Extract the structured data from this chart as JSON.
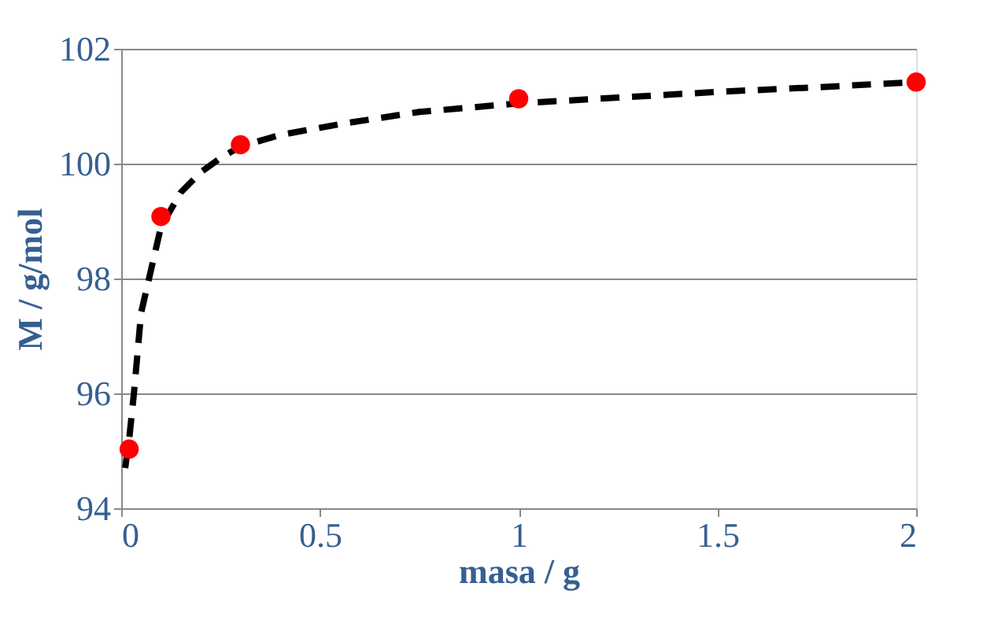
{
  "chart_data": {
    "type": "scatter",
    "xlabel": "masa / g",
    "ylabel": "M / g/mol",
    "xlim": [
      0,
      2
    ],
    "xticks": [
      0,
      0.5,
      1,
      1.5,
      2
    ],
    "ylim": [
      94,
      102
    ],
    "yticks": [
      94,
      96,
      98,
      100,
      102
    ],
    "grid": "y",
    "legend": false,
    "series": [
      {
        "type": "line",
        "color": "#000000",
        "line_style": "dashed",
        "marker": "none",
        "x": [
          0.01,
          0.02,
          0.032,
          0.05,
          0.085,
          0.1,
          0.15,
          0.2,
          0.25,
          0.3,
          0.4,
          0.56,
          0.75,
          1,
          1.25,
          1.5,
          1.75,
          2
        ],
        "values": [
          94.7,
          95.2,
          96.0,
          97.4,
          98.45,
          98.9,
          99.5,
          99.85,
          100.1,
          100.3,
          100.5,
          100.7,
          100.9,
          101.05,
          101.15,
          101.25,
          101.33,
          101.42
        ]
      },
      {
        "color": "#ff0000",
        "marker": "circle",
        "x": [
          0.02,
          0.1,
          0.3,
          1,
          2
        ],
        "values": [
          95.03,
          99.08,
          100.33,
          101.13,
          101.42
        ]
      }
    ]
  }
}
